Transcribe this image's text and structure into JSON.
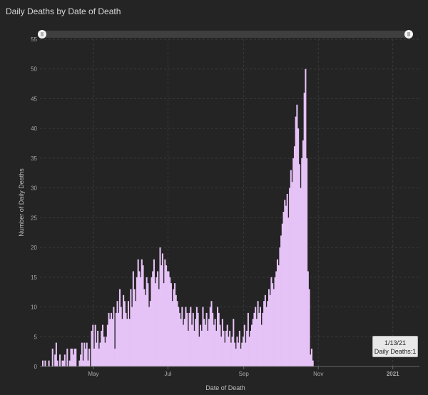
{
  "title": "Daily Deaths by Date of Death",
  "chart_data": {
    "type": "bar",
    "xlabel": "Date of Death",
    "ylabel": "Number of Daily Deaths",
    "ylim": [
      0,
      55
    ],
    "yticks": [
      0,
      5,
      10,
      15,
      20,
      25,
      30,
      35,
      40,
      45,
      50,
      55
    ],
    "x_start": "2020-03-20",
    "x_end": "2021-01-13",
    "xticks": [
      {
        "label": "May",
        "date": "2020-05-01"
      },
      {
        "label": "Jul",
        "date": "2020-07-01"
      },
      {
        "label": "Sep",
        "date": "2020-09-01"
      },
      {
        "label": "Nov",
        "date": "2020-11-01"
      },
      {
        "label": "2021",
        "date": "2021-01-01"
      }
    ],
    "grid": true,
    "bar_color": "#e6c3f7",
    "values": [
      1,
      0,
      1,
      0,
      0,
      1,
      0,
      0,
      3,
      0,
      2,
      4,
      1,
      0,
      2,
      0,
      1,
      1,
      2,
      0,
      3,
      0,
      1,
      3,
      3,
      2,
      3,
      3,
      0,
      0,
      1,
      2,
      4,
      1,
      4,
      3,
      4,
      1,
      3,
      0,
      6,
      7,
      3,
      7,
      4,
      6,
      3,
      4,
      6,
      7,
      5,
      4,
      5,
      7,
      9,
      8,
      9,
      8,
      10,
      3,
      9,
      11,
      9,
      13,
      10,
      8,
      12,
      11,
      9,
      8,
      11,
      8,
      13,
      10,
      16,
      13,
      11,
      15,
      18,
      16,
      15,
      18,
      17,
      13,
      12,
      15,
      14,
      10,
      11,
      15,
      16,
      18,
      14,
      15,
      16,
      13,
      20,
      17,
      19,
      14,
      18,
      17,
      16,
      16,
      15,
      14,
      11,
      13,
      14,
      12,
      11,
      10,
      9,
      8,
      10,
      7,
      8,
      10,
      9,
      6,
      9,
      10,
      7,
      9,
      6,
      8,
      10,
      9,
      5,
      7,
      6,
      10,
      8,
      7,
      9,
      6,
      8,
      10,
      11,
      9,
      7,
      8,
      6,
      10,
      9,
      7,
      5,
      8,
      6,
      4,
      6,
      7,
      5,
      6,
      4,
      5,
      8,
      4,
      3,
      5,
      4,
      6,
      3,
      4,
      5,
      7,
      4,
      6,
      9,
      5,
      6,
      7,
      8,
      9,
      10,
      8,
      11,
      9,
      10,
      7,
      9,
      11,
      12,
      10,
      11,
      13,
      12,
      15,
      14,
      13,
      15,
      16,
      18,
      17,
      20,
      22,
      24,
      26,
      28,
      27,
      29,
      25,
      30,
      33,
      31,
      35,
      37,
      42,
      44,
      40,
      34,
      30,
      35,
      38,
      46,
      50,
      35,
      16,
      13,
      2,
      3,
      1
    ],
    "tooltip": {
      "date": "1/13/21",
      "label": "Daily Deaths:1"
    },
    "range_slider": true
  }
}
